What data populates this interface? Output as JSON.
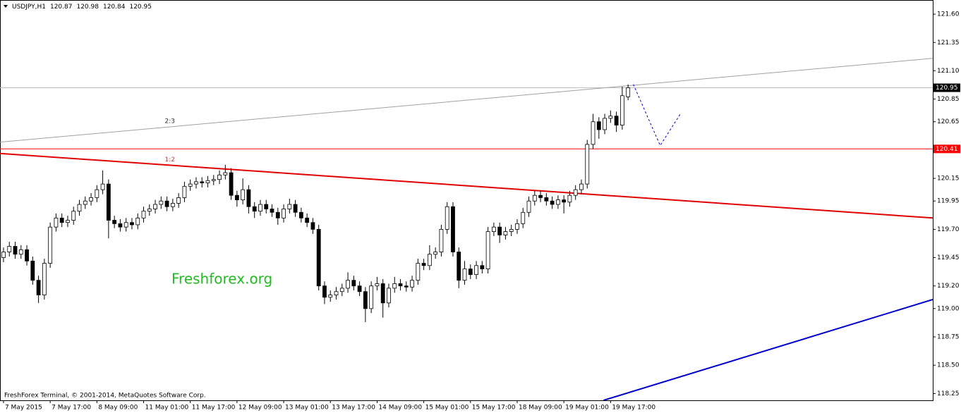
{
  "chart_data": {
    "type": "candlestick",
    "symbol": "USDJPY,H1",
    "open": [
      119.45,
      119.5,
      119.55,
      119.48,
      119.52,
      119.42,
      119.25,
      119.12,
      119.4,
      119.72,
      119.8,
      119.76,
      119.78,
      119.86,
      119.92,
      119.95,
      119.98,
      120.05,
      120.1,
      119.78,
      119.75,
      119.72,
      119.76,
      119.74,
      119.8,
      119.86,
      119.88,
      119.92,
      119.95,
      119.9,
      119.93,
      119.98,
      120.08,
      120.1,
      120.12,
      120.11,
      120.13,
      120.14,
      120.18,
      120.2,
      120.0,
      119.96,
      120.05,
      119.9,
      119.86,
      119.92,
      119.88,
      119.85,
      119.8,
      119.88,
      119.92,
      119.85,
      119.8,
      119.76,
      119.7,
      119.2,
      119.1,
      119.12,
      119.15,
      119.18,
      119.25,
      119.2,
      119.15,
      119.0,
      119.2,
      119.22,
      119.05,
      119.18,
      119.22,
      119.2,
      119.19,
      119.25,
      119.4,
      119.38,
      119.48,
      119.5,
      119.7,
      119.9,
      119.5,
      119.25,
      119.35,
      119.3,
      119.38,
      119.35,
      119.68,
      119.72,
      119.65,
      119.68,
      119.7,
      119.75,
      119.85,
      119.95,
      120.0,
      119.98,
      119.95,
      119.92,
      119.96,
      119.94,
      120.0,
      120.05,
      120.1,
      120.45,
      120.65,
      120.58,
      120.68,
      120.7,
      120.62,
      120.87
    ],
    "high": [
      119.54,
      119.59,
      119.59,
      119.56,
      119.56,
      119.46,
      119.29,
      119.44,
      119.76,
      119.84,
      119.84,
      119.82,
      119.9,
      119.96,
      119.99,
      120.02,
      120.09,
      120.22,
      120.14,
      119.82,
      119.79,
      119.8,
      119.8,
      119.84,
      119.9,
      119.92,
      119.96,
      119.99,
      119.99,
      119.97,
      120.02,
      120.12,
      120.14,
      120.16,
      120.16,
      120.17,
      120.18,
      120.22,
      120.27,
      120.24,
      120.04,
      120.15,
      120.09,
      119.94,
      119.96,
      119.96,
      119.92,
      119.89,
      119.92,
      119.97,
      119.96,
      119.89,
      119.84,
      119.8,
      119.74,
      119.24,
      119.16,
      119.19,
      119.22,
      119.32,
      119.29,
      119.24,
      119.19,
      119.24,
      119.28,
      119.26,
      119.22,
      119.28,
      119.26,
      119.24,
      119.29,
      119.44,
      119.44,
      119.56,
      119.54,
      119.74,
      119.94,
      119.94,
      119.54,
      119.42,
      119.39,
      119.42,
      119.42,
      119.72,
      119.76,
      119.76,
      119.72,
      119.74,
      119.79,
      119.89,
      119.99,
      120.04,
      120.04,
      120.02,
      119.99,
      120.0,
      120.0,
      120.04,
      120.09,
      120.14,
      120.49,
      120.72,
      120.69,
      120.72,
      120.75,
      120.74,
      120.96,
      120.98
    ],
    "low": [
      119.41,
      119.46,
      119.44,
      119.44,
      119.38,
      119.21,
      119.05,
      119.08,
      119.36,
      119.68,
      119.72,
      119.72,
      119.74,
      119.82,
      119.88,
      119.91,
      119.94,
      120.01,
      119.62,
      119.71,
      119.68,
      119.68,
      119.7,
      119.7,
      119.76,
      119.82,
      119.84,
      119.88,
      119.86,
      119.86,
      119.89,
      119.94,
      120.04,
      120.06,
      120.07,
      120.07,
      120.09,
      120.1,
      120.14,
      119.96,
      119.9,
      119.92,
      119.84,
      119.8,
      119.82,
      119.84,
      119.81,
      119.74,
      119.76,
      119.84,
      119.81,
      119.76,
      119.72,
      119.66,
      119.16,
      119.04,
      119.06,
      119.08,
      119.11,
      119.14,
      119.16,
      119.11,
      118.88,
      118.96,
      119.16,
      118.92,
      119.01,
      119.14,
      119.16,
      119.15,
      119.15,
      119.21,
      119.34,
      119.34,
      119.44,
      119.46,
      119.66,
      119.46,
      119.18,
      119.21,
      119.26,
      119.26,
      119.31,
      119.31,
      119.64,
      119.58,
      119.61,
      119.64,
      119.66,
      119.71,
      119.81,
      119.91,
      119.94,
      119.91,
      119.88,
      119.88,
      119.84,
      119.9,
      119.96,
      120.01,
      120.06,
      120.41,
      120.5,
      120.54,
      120.64,
      120.56,
      120.58,
      120.84
    ],
    "close": [
      119.5,
      119.55,
      119.48,
      119.52,
      119.42,
      119.25,
      119.12,
      119.4,
      119.72,
      119.8,
      119.76,
      119.78,
      119.86,
      119.92,
      119.95,
      119.98,
      120.05,
      120.1,
      119.78,
      119.75,
      119.72,
      119.76,
      119.74,
      119.8,
      119.86,
      119.88,
      119.92,
      119.95,
      119.9,
      119.93,
      119.98,
      120.08,
      120.1,
      120.12,
      120.11,
      120.13,
      120.14,
      120.18,
      120.2,
      120.0,
      119.96,
      120.05,
      119.9,
      119.86,
      119.92,
      119.88,
      119.85,
      119.8,
      119.88,
      119.92,
      119.85,
      119.8,
      119.76,
      119.7,
      119.2,
      119.1,
      119.12,
      119.15,
      119.18,
      119.25,
      119.2,
      119.15,
      119.0,
      119.2,
      119.22,
      119.05,
      119.18,
      119.22,
      119.2,
      119.19,
      119.25,
      119.4,
      119.38,
      119.48,
      119.5,
      119.7,
      119.9,
      119.5,
      119.25,
      119.35,
      119.3,
      119.38,
      119.35,
      119.68,
      119.72,
      119.65,
      119.68,
      119.7,
      119.75,
      119.85,
      119.95,
      120.0,
      119.98,
      119.95,
      119.92,
      119.96,
      119.94,
      120.0,
      120.05,
      120.1,
      120.45,
      120.65,
      120.58,
      120.68,
      120.7,
      120.62,
      120.88,
      120.95
    ],
    "xlim": [
      -0.6,
      159.2
    ],
    "ylim": [
      118.19,
      121.725
    ],
    "yticks": [
      {
        "value": 121.6,
        "label": "121.60"
      },
      {
        "value": 121.35,
        "label": "121.35"
      },
      {
        "value": 121.1,
        "label": "121.10"
      },
      {
        "value": 120.85,
        "label": "120.85"
      },
      {
        "value": 120.65,
        "label": "120.65"
      },
      {
        "value": 120.15,
        "label": "120.15"
      },
      {
        "value": 119.95,
        "label": "119.95"
      },
      {
        "value": 119.7,
        "label": "119.70"
      },
      {
        "value": 119.45,
        "label": "119.45"
      },
      {
        "value": 119.2,
        "label": "119.20"
      },
      {
        "value": 119,
        "label": "119.00"
      },
      {
        "value": 118.75,
        "label": "118.75"
      },
      {
        "value": 118.5,
        "label": "118.50"
      },
      {
        "value": 118.25,
        "label": "118.25"
      }
    ],
    "xticks": [
      {
        "value": 0,
        "label": "7 May 2015"
      },
      {
        "value": 8,
        "label": "7 May 17:00"
      },
      {
        "value": 16,
        "label": "8 May 09:00"
      },
      {
        "value": 24,
        "label": "11 May 01:00"
      },
      {
        "value": 32,
        "label": "11 May 17:00"
      },
      {
        "value": 40,
        "label": "12 May 09:00"
      },
      {
        "value": 48,
        "label": "13 May 01:00"
      },
      {
        "value": 56,
        "label": "13 May 17:00"
      },
      {
        "value": 64,
        "label": "14 May 09:00"
      },
      {
        "value": 72,
        "label": "15 May 01:00"
      },
      {
        "value": 80,
        "label": "15 May 17:00"
      },
      {
        "value": 88,
        "label": "18 May 09:00"
      },
      {
        "value": 96,
        "label": "19 May 01:00"
      },
      {
        "value": 104,
        "label": "19 May 17:00"
      }
    ],
    "bull_color": "#ffffff",
    "bear_color": "#000000",
    "bid_line_color": "#c0c0c0",
    "levels": [
      {
        "value": 120.41,
        "color": "#ff0000"
      }
    ],
    "trendlines": [
      {
        "label": "2:3",
        "color": "#a0a0a0",
        "x": [
          -0.6,
          159.2
        ],
        "y": [
          120.47,
          121.21
        ]
      },
      {
        "label": "1:2",
        "color": "#e00000",
        "x": [
          -0.6,
          159.2
        ],
        "y": [
          120.37,
          119.8
        ]
      },
      {
        "color": "#0000cc",
        "x": [
          102.8,
          159.2
        ],
        "y": [
          118.19,
          119.08
        ]
      }
    ],
    "forecast": {
      "color": "#0000cc",
      "x": [
        107.9,
        112.5,
        116.1
      ],
      "y": [
        120.98,
        120.44,
        120.73
      ]
    },
    "watermark": "Freshforex.org",
    "footer": "FreshForex Terminal, © 2001-2014, MetaQuotes Software Corp."
  }
}
